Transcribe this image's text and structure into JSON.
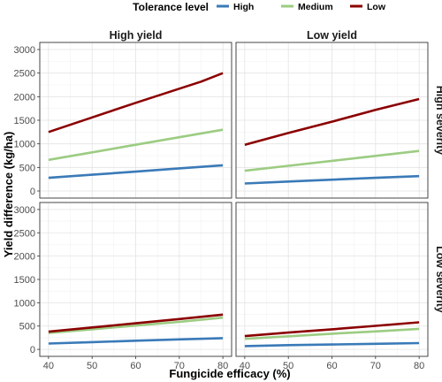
{
  "chart_data": {
    "type": "line",
    "legend": {
      "title": "Tolerance level",
      "position": "top",
      "entries": [
        {
          "name": "High",
          "color": "#3a7ab8"
        },
        {
          "name": "Medium",
          "color": "#9ccc82"
        },
        {
          "name": "Low",
          "color": "#8b0000"
        }
      ]
    },
    "xlabel": "Fungicide efficacy (%)",
    "ylabel": "Yield difference (kg/ha)",
    "xlim": [
      38,
      82
    ],
    "ylim": [
      -150,
      3150
    ],
    "xticks": [
      40,
      50,
      60,
      70,
      80
    ],
    "yticks": [
      0,
      500,
      1000,
      1500,
      2000,
      2500,
      3000
    ],
    "grid": true,
    "column_strips": [
      "High yield",
      "Low yield"
    ],
    "row_strips": [
      "High severity",
      "Low severity"
    ],
    "panels": [
      {
        "column": "High yield",
        "row": "High severity",
        "series": [
          {
            "name": "High",
            "x": [
              40,
              50,
              60,
              70,
              80
            ],
            "y": [
              280,
              345,
              410,
              480,
              545
            ]
          },
          {
            "name": "Medium",
            "x": [
              40,
              50,
              60,
              70,
              80
            ],
            "y": [
              660,
              820,
              980,
              1140,
              1300
            ]
          },
          {
            "name": "Low",
            "x": [
              40,
              50,
              60,
              70,
              75,
              80
            ],
            "y": [
              1250,
              1560,
              1870,
              2170,
              2320,
              2500
            ]
          }
        ]
      },
      {
        "column": "Low yield",
        "row": "High severity",
        "series": [
          {
            "name": "High",
            "x": [
              40,
              50,
              60,
              70,
              80
            ],
            "y": [
              160,
              200,
              240,
              280,
              315
            ]
          },
          {
            "name": "Medium",
            "x": [
              40,
              50,
              60,
              70,
              80
            ],
            "y": [
              430,
              535,
              640,
              745,
              850
            ]
          },
          {
            "name": "Low",
            "x": [
              40,
              50,
              60,
              70,
              80
            ],
            "y": [
              980,
              1230,
              1470,
              1720,
              1950
            ]
          }
        ]
      },
      {
        "column": "High yield",
        "row": "Low severity",
        "series": [
          {
            "name": "High",
            "x": [
              40,
              50,
              60,
              70,
              80
            ],
            "y": [
              125,
              155,
              185,
              215,
              240
            ]
          },
          {
            "name": "Medium",
            "x": [
              40,
              50,
              60,
              70,
              80
            ],
            "y": [
              350,
              430,
              510,
              590,
              680
            ]
          },
          {
            "name": "Low",
            "x": [
              40,
              50,
              60,
              70,
              80
            ],
            "y": [
              380,
              470,
              560,
              650,
              745
            ]
          }
        ]
      },
      {
        "column": "Low yield",
        "row": "Low severity",
        "series": [
          {
            "name": "High",
            "x": [
              40,
              50,
              60,
              70,
              80
            ],
            "y": [
              70,
              90,
              105,
              120,
              135
            ]
          },
          {
            "name": "Medium",
            "x": [
              40,
              50,
              60,
              70,
              80
            ],
            "y": [
              225,
              280,
              335,
              385,
              440
            ]
          },
          {
            "name": "Low",
            "x": [
              40,
              50,
              60,
              70,
              80
            ],
            "y": [
              285,
              360,
              430,
              505,
              580
            ]
          }
        ]
      }
    ]
  }
}
